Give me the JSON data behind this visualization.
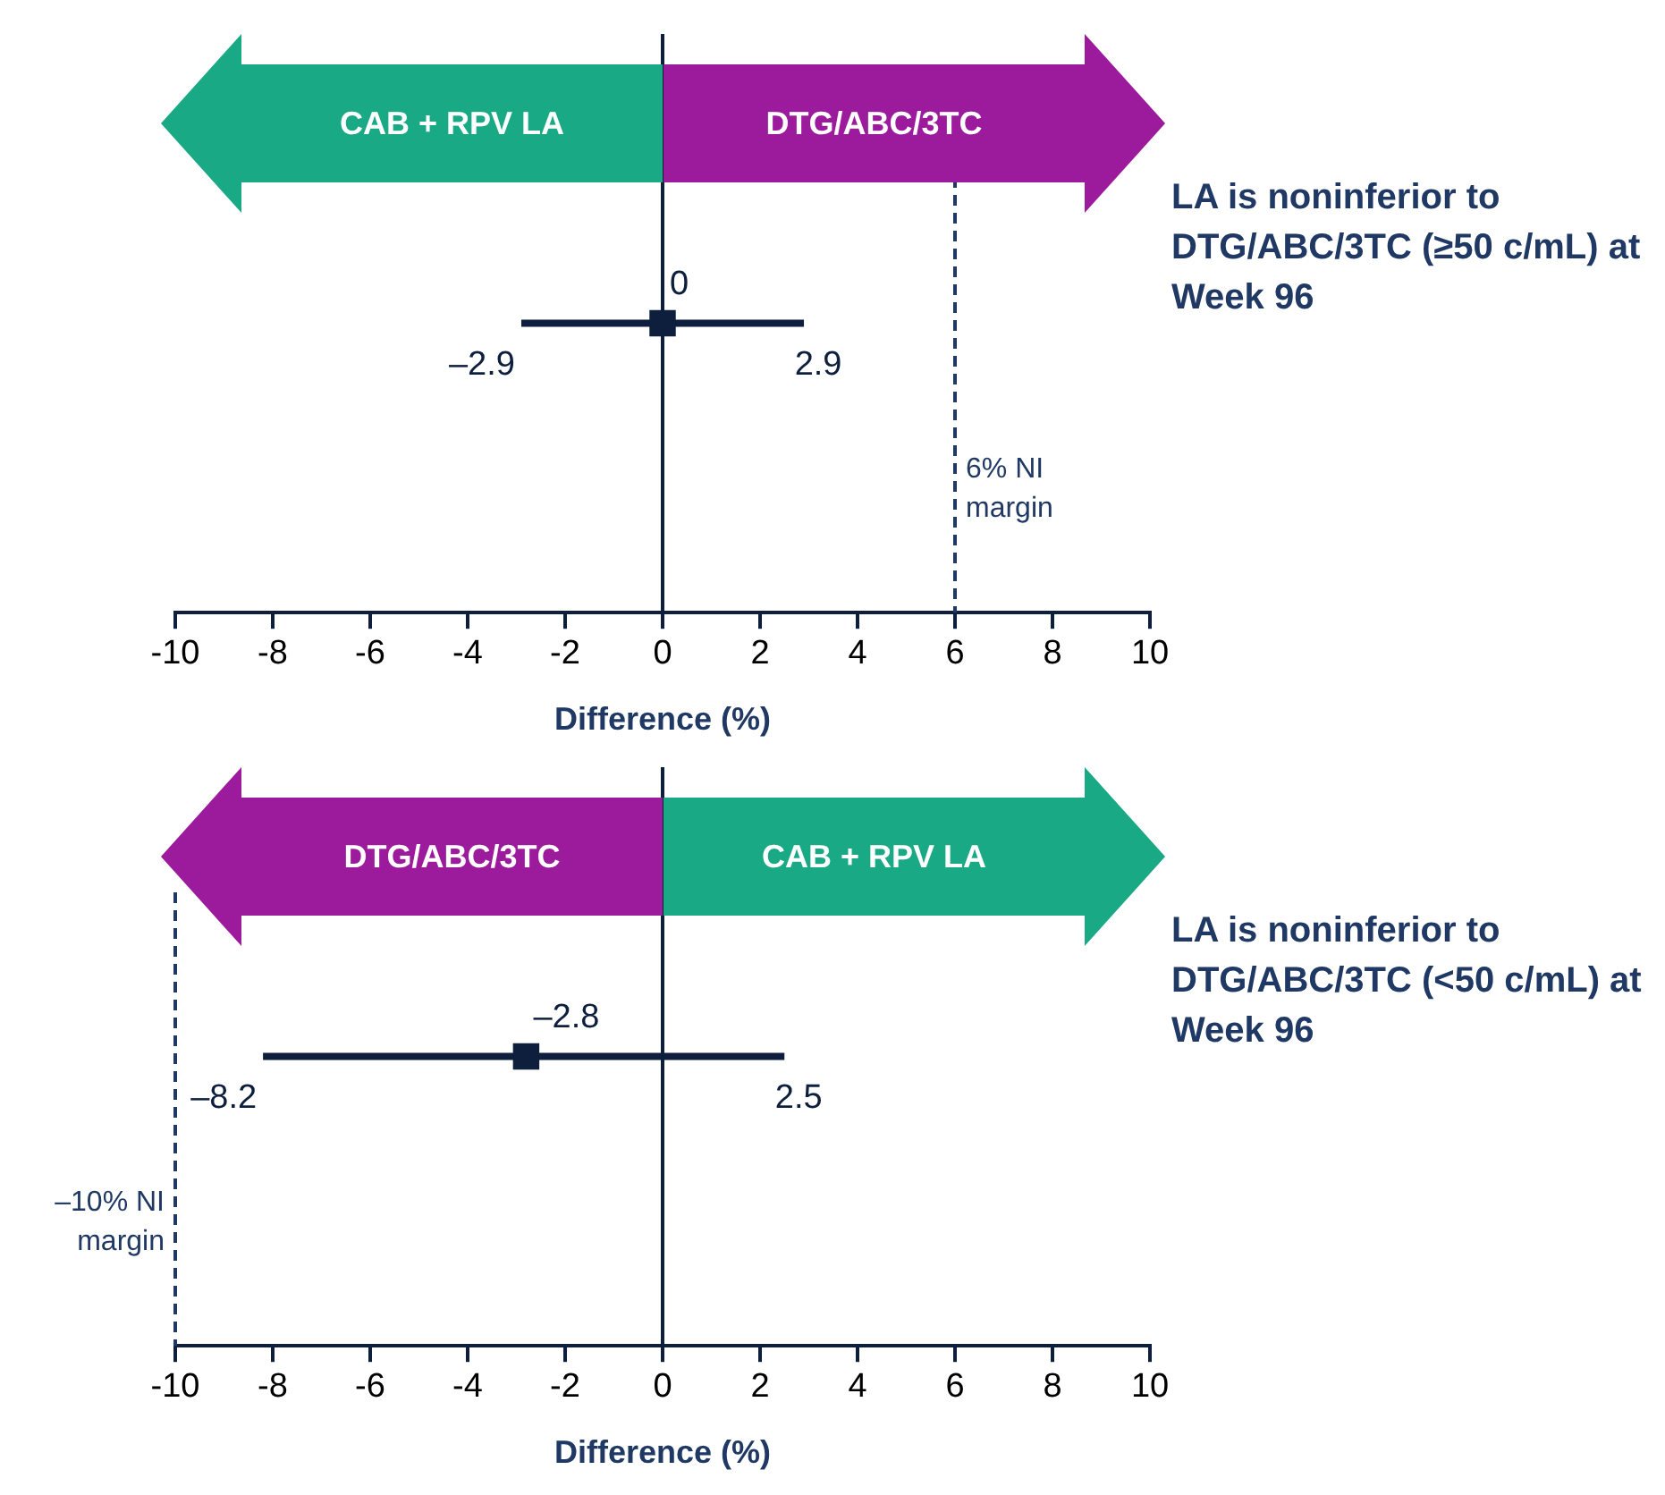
{
  "chart_data": [
    {
      "type": "scatter",
      "orientation": "horizontal",
      "categories": [
        null
      ],
      "series": [
        {
          "color": "#0d1f3c",
          "values": [
            0
          ],
          "errors": [
            [
              -2.9,
              2.9
            ]
          ],
          "value_labels": [
            "0"
          ]
        }
      ],
      "xlim": [
        -10,
        10
      ],
      "xticks": [
        -10,
        -8,
        -6,
        -4,
        -2,
        0,
        2,
        4,
        6,
        8,
        10
      ],
      "xlabel": "Difference (%)",
      "tick_labels": "x",
      "grid": false,
      "legend": false,
      "marker": "square",
      "ref_lines": [
        {
          "axis": "x",
          "value": 0,
          "color": "#0d1f3c"
        },
        {
          "axis": "x",
          "value": 6,
          "label": "6% NI margin",
          "color": "#1f3864",
          "line_style": "dashed"
        }
      ],
      "annotations": [
        "CAB + RPV LA",
        "DTG/ABC/3TC",
        "–2.9",
        "2.9",
        "LA is noninferior to DTG/ABC/3TC (≥50 c/mL) at Week 96"
      ]
    },
    {
      "type": "scatter",
      "orientation": "horizontal",
      "categories": [
        null
      ],
      "series": [
        {
          "color": "#0d1f3c",
          "values": [
            -2.8
          ],
          "errors": [
            [
              -8.2,
              2.5
            ]
          ],
          "value_labels": [
            "–2.8"
          ]
        }
      ],
      "xlim": [
        -10,
        10
      ],
      "xticks": [
        -10,
        -8,
        -6,
        -4,
        -2,
        0,
        2,
        4,
        6,
        8,
        10
      ],
      "xlabel": "Difference (%)",
      "tick_labels": "x",
      "grid": false,
      "legend": false,
      "marker": "square",
      "ref_lines": [
        {
          "axis": "x",
          "value": 0,
          "color": "#0d1f3c"
        },
        {
          "axis": "x",
          "value": -10,
          "label": "–10% NI margin",
          "color": "#1f3864",
          "line_style": "dashed"
        }
      ],
      "annotations": [
        "DTG/ABC/3TC",
        "CAB + RPV LA",
        "–8.2",
        "2.5",
        "LA is noninferior to DTG/ABC/3TC (<50 c/mL) at Week 96"
      ]
    }
  ]
}
